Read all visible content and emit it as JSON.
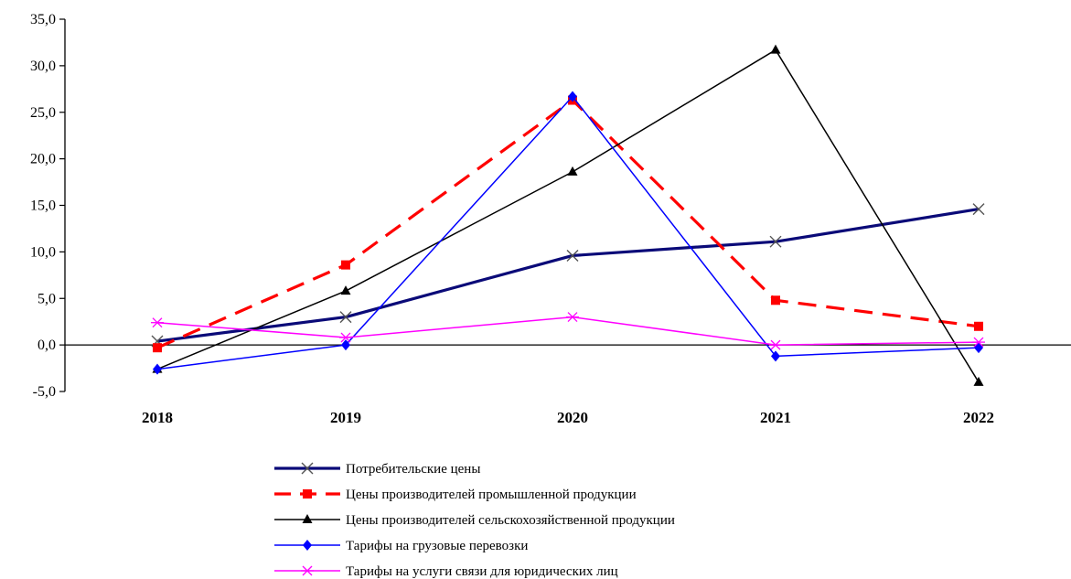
{
  "chart_data": {
    "type": "line",
    "title": "",
    "xlabel": "",
    "ylabel": "",
    "categories": [
      "2018",
      "2019",
      "2020",
      "2021",
      "2022"
    ],
    "ylim": [
      -5,
      35
    ],
    "yticks": [
      "-5,0",
      "0,0",
      "5,0",
      "10,0",
      "15,0",
      "20,0",
      "25,0",
      "30,0",
      "35,0"
    ],
    "grid": false,
    "legend_position": "bottom",
    "series": [
      {
        "name": "Потребительские цены",
        "values": [
          0.4,
          3.0,
          9.6,
          11.1,
          14.6
        ],
        "color": "#0a0a78",
        "marker": "x",
        "dash": "solid"
      },
      {
        "name": "Цены производителей промышленной продукции",
        "values": [
          -0.3,
          8.6,
          26.3,
          4.8,
          2.0
        ],
        "color": "#ff0000",
        "marker": "square",
        "dash": "dashed"
      },
      {
        "name": "Цены производителей сельскохозяйственной продукции",
        "values": [
          -2.6,
          5.8,
          18.6,
          31.7,
          -4.0
        ],
        "color": "#000000",
        "marker": "triangle",
        "dash": "solid"
      },
      {
        "name": "Тарифы на грузовые перевозки",
        "values": [
          -2.6,
          0.0,
          26.7,
          -1.2,
          -0.3
        ],
        "color": "#0000ff",
        "marker": "diamond",
        "dash": "solid"
      },
      {
        "name": "Тарифы на услуги связи для юридических лиц",
        "values": [
          2.4,
          0.8,
          3.0,
          0.0,
          0.3
        ],
        "color": "#ff00ff",
        "marker": "asterisk",
        "dash": "solid"
      }
    ]
  }
}
